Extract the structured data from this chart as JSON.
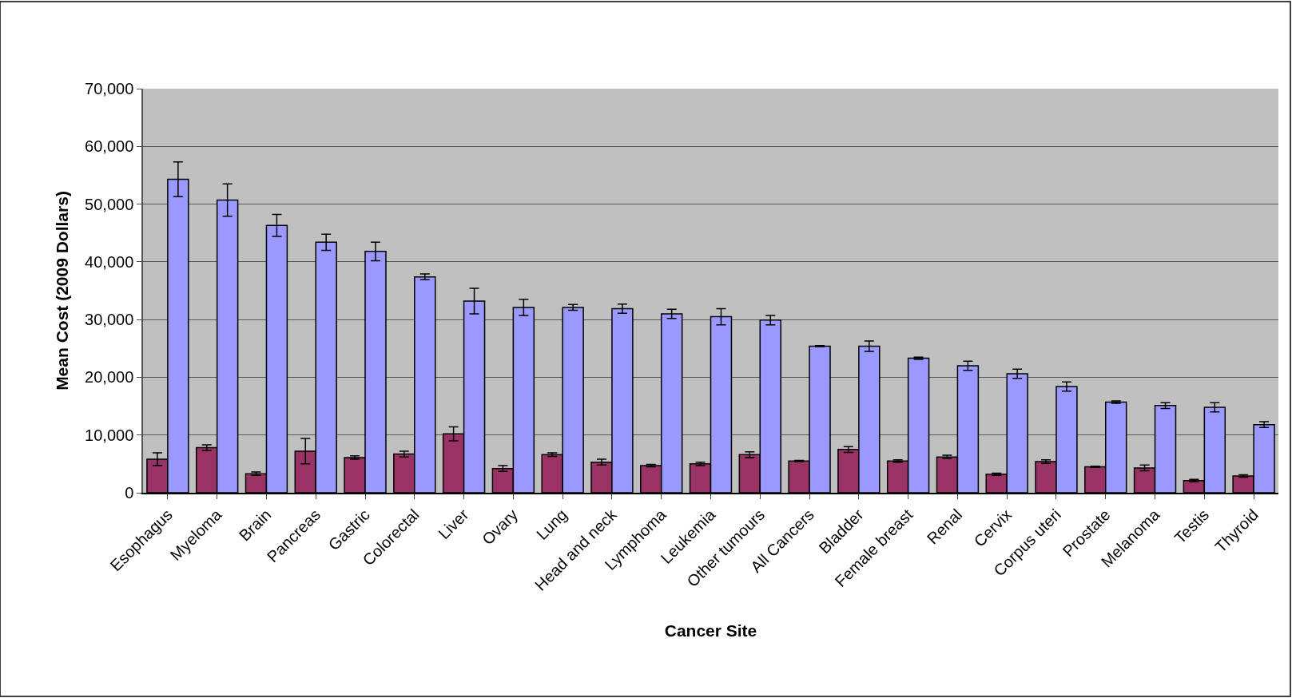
{
  "chart_data": {
    "type": "bar",
    "xlabel": "Cancer Site",
    "ylabel": "Mean Cost (2009 Dollars)",
    "categories": [
      "Esophagus",
      "Myeloma",
      "Brain",
      "Pancreas",
      "Gastric",
      "Colorectal",
      "Liver",
      "Ovary",
      "Lung",
      "Head and neck",
      "Lymphoma",
      "Leukemia",
      "Other tumours",
      "All Cancers",
      "Bladder",
      "Female breast",
      "Renal",
      "Cervix",
      "Corpus uteri",
      "Prostate",
      "Melanoma",
      "Testis",
      "Thyroid"
    ],
    "series": [
      {
        "color": "#993366",
        "values": [
          5800,
          7800,
          3300,
          7200,
          6100,
          6700,
          10200,
          4200,
          6600,
          5300,
          4700,
          5000,
          6600,
          5500,
          7500,
          5500,
          6200,
          3200,
          5400,
          4500,
          4300,
          2100,
          2900
        ],
        "errors": [
          1100,
          500,
          300,
          2200,
          300,
          500,
          1200,
          500,
          300,
          500,
          200,
          300,
          500,
          100,
          500,
          200,
          300,
          200,
          300,
          100,
          500,
          200,
          200
        ]
      },
      {
        "color": "#9999ff",
        "values": [
          54300,
          50700,
          46300,
          43400,
          41800,
          37400,
          33200,
          32100,
          32100,
          31900,
          31000,
          30500,
          29900,
          25400,
          25400,
          23300,
          22000,
          20600,
          18400,
          15700,
          15100,
          14800,
          11800
        ],
        "errors": [
          3000,
          2800,
          1900,
          1400,
          1600,
          500,
          2200,
          1400,
          500,
          800,
          800,
          1400,
          800,
          100,
          900,
          200,
          800,
          800,
          800,
          200,
          500,
          800,
          500
        ]
      }
    ],
    "ylim": [
      0,
      70000
    ],
    "yticks": [
      {
        "value": 0,
        "label": "0"
      },
      {
        "value": 10000,
        "label": "10,000"
      },
      {
        "value": 20000,
        "label": "20,000"
      },
      {
        "value": 30000,
        "label": "30,000"
      },
      {
        "value": 40000,
        "label": "40,000"
      },
      {
        "value": 50000,
        "label": "50,000"
      },
      {
        "value": 60000,
        "label": "60,000"
      },
      {
        "value": 70000,
        "label": "70,000"
      }
    ],
    "grid": "y"
  }
}
